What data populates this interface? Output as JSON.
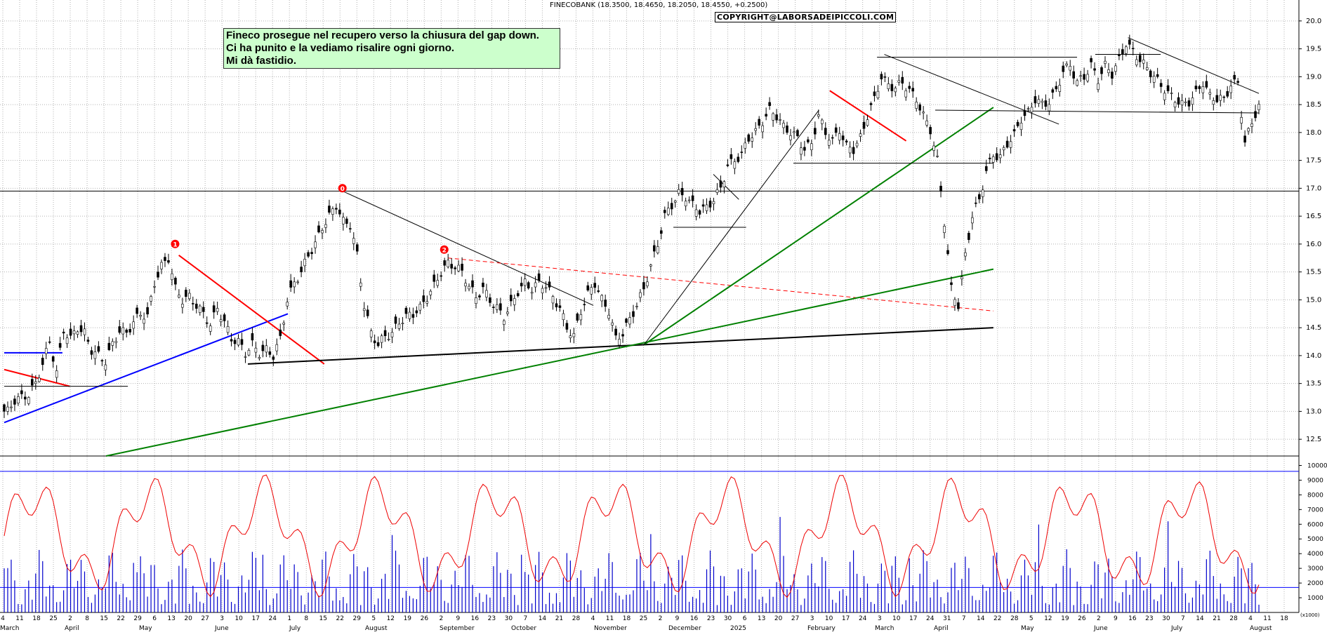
{
  "chart_data": [
    {
      "type": "candlestick",
      "title": "FINECOBANK (18.3500, 18.4650, 18.2050, 18.4550, +0.2500)",
      "watermark": "COPYRIGHT@LABORSADEIPICCOLI.COM",
      "annotation_lines": [
        "Fineco prosegue nel recupero verso la chiusura del gap down.",
        "Ci ha punito e la vediamo risalire ogni giorno.",
        "Mi dà fastidio."
      ],
      "ylim": [
        12.2,
        20.3
      ],
      "y_ticks": [
        "12.5",
        "13.0",
        "13.5",
        "14.0",
        "14.5",
        "15.0",
        "15.5",
        "16.0",
        "16.5",
        "17.0",
        "17.5",
        "18.0",
        "18.5",
        "19.0",
        "19.5",
        "20.0"
      ],
      "x_months": [
        "March",
        "April",
        "May",
        "June",
        "July",
        "August",
        "September",
        "October",
        "November",
        "December",
        "2025",
        "February",
        "March",
        "April",
        "May",
        "June",
        "July",
        "August"
      ],
      "x_days": [
        "4",
        "11",
        "18",
        "25",
        "2",
        "8",
        "15",
        "22",
        "29",
        "6",
        "13",
        "20",
        "27",
        "3",
        "10",
        "17",
        "24",
        "1",
        "8",
        "15",
        "22",
        "29",
        "5",
        "12",
        "19",
        "26",
        "2",
        "9",
        "16",
        "23",
        "30",
        "7",
        "14",
        "21",
        "28",
        "4",
        "11",
        "18",
        "25",
        "2",
        "9",
        "16",
        "23",
        "30",
        "6",
        "13",
        "20",
        "27",
        "3",
        "10",
        "17",
        "24",
        "3",
        "10",
        "17",
        "24",
        "31",
        "7",
        "14",
        "22",
        "28",
        "5",
        "12",
        "19",
        "26",
        "2",
        "9",
        "16",
        "23",
        "30",
        "7",
        "14",
        "21",
        "28",
        "4",
        "11",
        "18"
      ],
      "labels": [
        "0",
        "1",
        "2"
      ],
      "close_series": [
        13.0,
        13.2,
        13.25,
        13.3,
        13.5,
        13.85,
        14.25,
        13.7,
        14.45,
        14.3,
        14.5,
        14.4,
        14.1,
        14.0,
        13.9,
        14.2,
        14.45,
        14.4,
        14.6,
        14.75,
        14.7,
        15.3,
        15.6,
        15.75,
        15.2,
        15.0,
        15.05,
        14.9,
        14.75,
        14.55,
        14.85,
        14.6,
        14.3,
        14.25,
        14.05,
        14.2,
        14.05,
        14.1,
        14.0,
        14.3,
        15.0,
        15.3,
        15.5,
        15.8,
        16.0,
        16.3,
        16.5,
        16.7,
        16.4,
        16.35,
        15.8,
        14.9,
        14.4,
        14.2,
        14.35,
        14.4,
        14.6,
        14.7,
        14.75,
        14.85,
        15.05,
        15.25,
        15.5,
        15.65,
        15.6,
        15.5,
        15.25,
        15.05,
        15.2,
        15.0,
        14.85,
        14.7,
        14.9,
        15.15,
        15.3,
        15.2,
        15.3,
        15.25,
        15.05,
        14.85,
        14.5,
        14.35,
        14.8,
        15.1,
        15.3,
        15.0,
        14.8,
        14.3,
        14.4,
        14.65,
        14.9,
        15.2,
        15.6,
        16.0,
        16.5,
        16.7,
        16.9,
        16.85,
        16.7,
        16.6,
        16.65,
        16.8,
        17.0,
        17.4,
        17.5,
        17.6,
        17.9,
        18.0,
        18.2,
        18.4,
        18.3,
        18.1,
        18.0,
        17.9,
        17.7,
        17.8,
        18.3,
        18.0,
        17.85,
        18.05,
        17.75,
        17.7,
        17.9,
        18.3,
        18.6,
        19.0,
        18.85,
        18.8,
        18.9,
        18.75,
        18.6,
        18.3,
        18.05,
        17.5,
        16.4,
        15.2,
        14.9,
        15.8,
        16.5,
        16.8,
        17.3,
        17.6,
        17.55,
        17.8,
        17.95,
        18.25,
        18.35,
        18.6,
        18.5,
        18.55,
        18.75,
        19.1,
        19.2,
        18.9,
        19.0,
        19.2,
        18.95,
        19.2,
        19.05,
        19.3,
        19.6,
        19.45,
        19.3,
        19.15,
        19.0,
        18.85,
        18.7,
        18.6,
        18.5,
        18.55,
        18.7,
        18.9,
        18.65,
        18.6,
        18.6,
        18.85,
        18.9,
        17.8,
        18.2,
        18.45
      ],
      "rsi_ylim": [
        0,
        10500
      ],
      "rsi_ticks": [
        "1000",
        "2000",
        "3000",
        "4000",
        "5000",
        "6000",
        "7000",
        "8000",
        "9000",
        "10000"
      ],
      "rsi_levels": [
        1700,
        9600
      ],
      "volume_unit": "(x1000)"
    }
  ],
  "colors": {
    "candle_up": "#ffffff",
    "candle_down": "#000000",
    "trend_red": "#ff0000",
    "trend_green": "#008000",
    "trend_blue": "#0000ff",
    "oscillator": "#ee0000",
    "volume": "#0000cc",
    "grid": "#b3b3b3",
    "note_bg": "#ccffcc"
  }
}
